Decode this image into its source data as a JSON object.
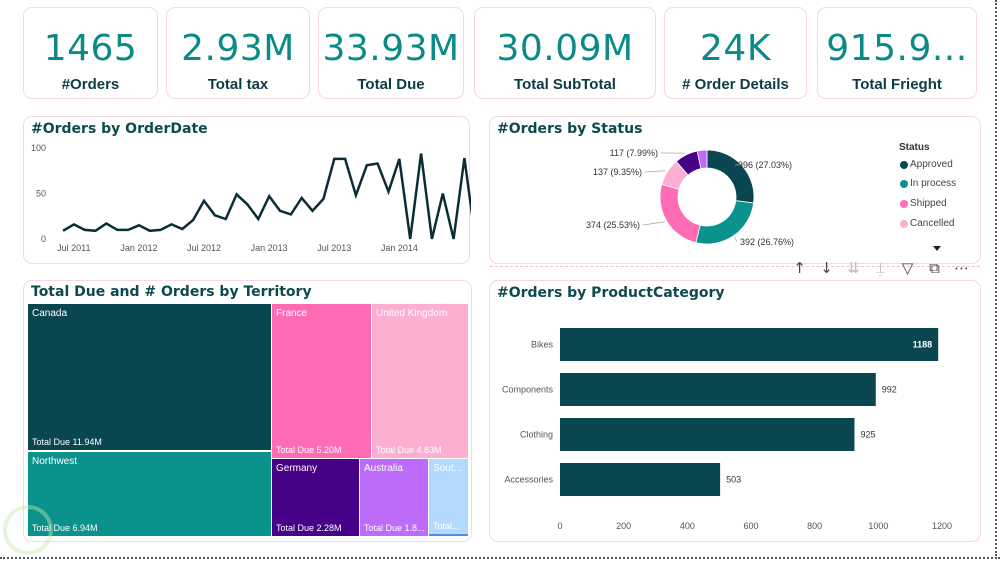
{
  "kpis": [
    {
      "value": "1465",
      "label": "#Orders"
    },
    {
      "value": "2.93M",
      "label": "Total tax"
    },
    {
      "value": "33.93M",
      "label": "Total Due"
    },
    {
      "value": "30.09M",
      "label": "Total SubTotal"
    },
    {
      "value": "24K",
      "label": "# Order Details"
    },
    {
      "value": "915.9...",
      "label": "Total Frieght"
    }
  ],
  "colors": {
    "teal_dark": "#0a4650",
    "teal": "#0b928d",
    "pink": "#ff6bb5",
    "light_pink": "#fdafd3",
    "purple": "#470088",
    "lavender": "#bd6cf9",
    "light_blue": "#b3d9ff",
    "kpi_value": "#0b8a87"
  },
  "line_chart": {
    "title": "#Orders by OrderDate",
    "chart_data": {
      "type": "line",
      "title": "#Orders by OrderDate",
      "xlabel": "",
      "ylabel": "",
      "ylim": [
        0,
        100
      ],
      "yticks": [
        "0",
        "50",
        "100"
      ],
      "xticks": [
        "Jul 2011",
        "Jan 2012",
        "Jul 2012",
        "Jan 2013",
        "Jul 2013",
        "Jan 2014"
      ],
      "series": [
        {
          "name": "#Orders",
          "values": [
            9,
            16,
            10,
            9,
            17,
            10,
            10,
            15,
            9,
            10,
            16,
            11,
            21,
            42,
            26,
            22,
            49,
            38,
            22,
            47,
            31,
            27,
            45,
            31,
            44,
            88,
            88,
            48,
            81,
            83,
            52,
            88,
            0,
            94,
            0,
            50,
            0,
            89,
            0,
            100
          ]
        }
      ]
    }
  },
  "donut": {
    "title": "#Orders by Status",
    "legend_title": "Status",
    "legend": [
      "Approved",
      "In process",
      "Shipped",
      "Cancelled"
    ],
    "chart_data": {
      "type": "pie",
      "title": "#Orders by Status",
      "slices": [
        {
          "name": "Approved",
          "value": 396,
          "label": "396 (27.03%)",
          "color": "#0a4650"
        },
        {
          "name": "In process",
          "value": 392,
          "label": "392 (26.76%)",
          "color": "#0b928d"
        },
        {
          "name": "Shipped",
          "value": 374,
          "label": "374 (25.53%)",
          "color": "#ff6bb5"
        },
        {
          "name": "Cancelled",
          "value": 137,
          "label": "137 (9.35%)",
          "color": "#fdafd3"
        },
        {
          "name": "",
          "value": 117,
          "label": "117 (7.99%)",
          "color": "#470088"
        },
        {
          "name": "",
          "value": 49,
          "label": "",
          "color": "#bd6cf9"
        }
      ]
    }
  },
  "treemap": {
    "title": "Total Due and # Orders by Territory",
    "cells": [
      {
        "name": "Canada",
        "value_label": "Total Due 11.94M",
        "color": "#0a4650"
      },
      {
        "name": "Northwest",
        "value_label": "Total Due 6.94M",
        "color": "#0b928d"
      },
      {
        "name": "France",
        "value_label": "Total Due 5.20M",
        "color": "#ff6bb5"
      },
      {
        "name": "United Kingdom",
        "value_label": "Total Due 4.83M",
        "color": "#fdafd3"
      },
      {
        "name": "Germany",
        "value_label": "Total Due 2.28M",
        "color": "#470088"
      },
      {
        "name": "Australia",
        "value_label": "Total Due 1.8...",
        "color": "#bd6cf9"
      },
      {
        "name": "Sout...",
        "value_label": "Total...",
        "color": "#b3d9ff"
      }
    ]
  },
  "bar_chart": {
    "title": "#Orders by ProductCategory",
    "chart_data": {
      "type": "bar",
      "orientation": "horizontal",
      "title": "#Orders by ProductCategory",
      "categories": [
        "Bikes",
        "Components",
        "Clothing",
        "Accessories"
      ],
      "values": [
        1188,
        992,
        925,
        503
      ],
      "xlim": [
        0,
        1200
      ],
      "xticks": [
        "0",
        "200",
        "400",
        "600",
        "800",
        "1000",
        "1200"
      ],
      "color": "#0a4650"
    }
  },
  "visual_toolbar": {
    "buttons": [
      {
        "icon": "arrow-up-icon",
        "glyph": "↑"
      },
      {
        "icon": "arrow-down-icon",
        "glyph": "↓"
      },
      {
        "icon": "double-arrow-down-icon",
        "glyph": "⇊"
      },
      {
        "icon": "expand-hierarchy-icon",
        "glyph": "⍊"
      },
      {
        "icon": "filter-icon",
        "glyph": "▽"
      },
      {
        "icon": "focus-mode-icon",
        "glyph": "⧉"
      },
      {
        "icon": "more-options-icon",
        "glyph": "⋯"
      }
    ]
  }
}
